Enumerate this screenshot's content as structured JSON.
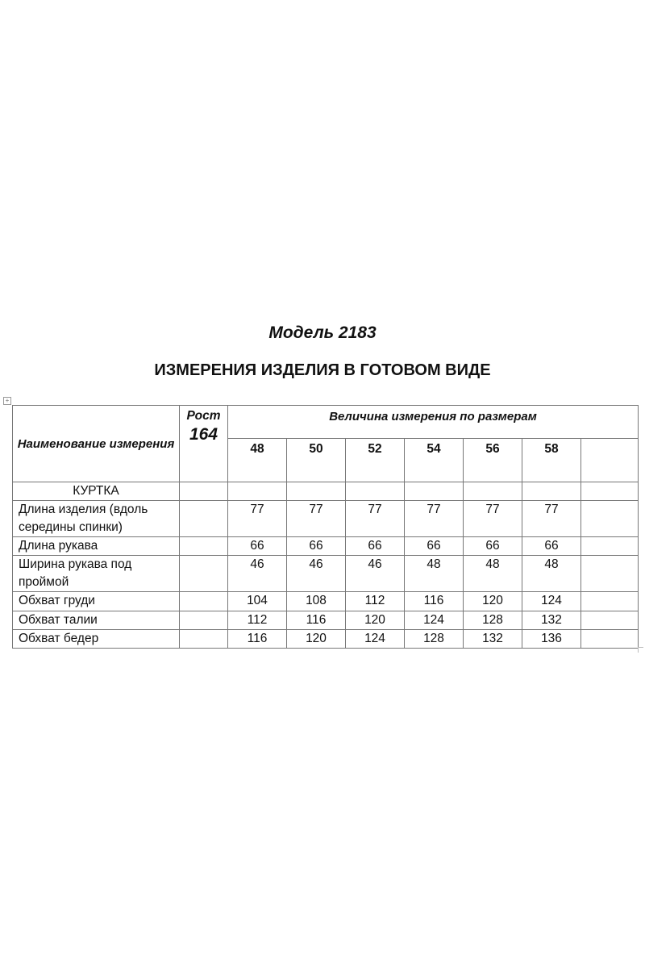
{
  "model_title": "Модель 2183",
  "heading": "ИЗМЕРЕНИЯ ИЗДЕЛИЯ В ГОТОВОМ ВИДЕ",
  "table": {
    "name_header": "Наименование измерения",
    "height_label": "Рост",
    "height_value": "164",
    "values_header": "Величина измерения по размерам",
    "sizes": [
      "48",
      "50",
      "52",
      "54",
      "56",
      "58",
      ""
    ],
    "section": "КУРТКА",
    "rows": [
      {
        "name": "Длина изделия (вдоль середины спинки)",
        "values": [
          "77",
          "77",
          "77",
          "77",
          "77",
          "77"
        ]
      },
      {
        "name": "Длина рукава",
        "values": [
          "66",
          "66",
          "66",
          "66",
          "66",
          "66"
        ]
      },
      {
        "name": "Ширина рукава под проймой",
        "values": [
          "46",
          "46",
          "46",
          "48",
          "48",
          "48"
        ]
      },
      {
        "name": "Обхват груди",
        "values": [
          "104",
          "108",
          "112",
          "116",
          "120",
          "124"
        ]
      },
      {
        "name": "Обхват талии",
        "values": [
          "112",
          "116",
          "120",
          "124",
          "128",
          "132"
        ]
      },
      {
        "name": "Обхват бедер",
        "values": [
          "116",
          "120",
          "124",
          "128",
          "132",
          "136"
        ]
      }
    ]
  }
}
